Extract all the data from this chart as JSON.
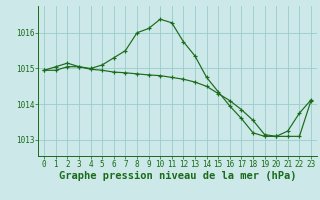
{
  "title": "Graphe pression niveau de la mer (hPa)",
  "background_color": "#cce8e8",
  "grid_color": "#99cccc",
  "line_color": "#1a6b1a",
  "x_labels": [
    "0",
    "1",
    "2",
    "3",
    "4",
    "5",
    "6",
    "7",
    "8",
    "9",
    "10",
    "11",
    "12",
    "13",
    "14",
    "15",
    "16",
    "17",
    "18",
    "19",
    "20",
    "21",
    "22",
    "23"
  ],
  "xlim": [
    -0.5,
    23.5
  ],
  "ylim": [
    1012.55,
    1016.75
  ],
  "yticks": [
    1013,
    1014,
    1015,
    1016
  ],
  "series1": [
    1014.95,
    1014.95,
    1015.05,
    1015.05,
    1014.98,
    1014.95,
    1014.9,
    1014.88,
    1014.85,
    1014.82,
    1014.8,
    1014.75,
    1014.7,
    1014.62,
    1014.5,
    1014.3,
    1014.1,
    1013.85,
    1013.55,
    1013.15,
    1013.1,
    1013.1,
    1013.1,
    1014.1
  ],
  "series2": [
    1014.95,
    1015.05,
    1015.15,
    1015.05,
    1015.0,
    1015.1,
    1015.3,
    1015.5,
    1016.0,
    1016.12,
    1016.38,
    1016.28,
    1015.75,
    1015.35,
    1014.75,
    1014.35,
    1013.95,
    1013.6,
    1013.2,
    1013.1,
    1013.1,
    1013.25,
    1013.75,
    1014.12
  ],
  "title_fontsize": 7.5,
  "tick_fontsize": 5.5,
  "title_color": "#1a6b1a",
  "tick_color": "#1a6b1a",
  "spine_color": "#1a6b1a"
}
